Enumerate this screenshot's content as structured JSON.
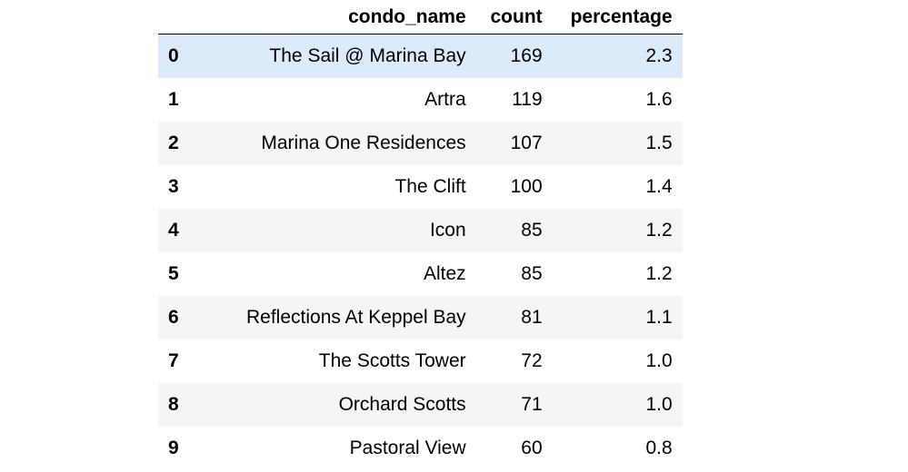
{
  "table": {
    "columns": {
      "index": "",
      "condo_name": "condo_name",
      "count": "count",
      "percentage": "percentage"
    },
    "rows": [
      {
        "index": "0",
        "condo_name": "The Sail @ Marina Bay",
        "count": "169",
        "percentage": "2.3"
      },
      {
        "index": "1",
        "condo_name": "Artra",
        "count": "119",
        "percentage": "1.6"
      },
      {
        "index": "2",
        "condo_name": "Marina One Residences",
        "count": "107",
        "percentage": "1.5"
      },
      {
        "index": "3",
        "condo_name": "The Clift",
        "count": "100",
        "percentage": "1.4"
      },
      {
        "index": "4",
        "condo_name": "Icon",
        "count": "85",
        "percentage": "1.2"
      },
      {
        "index": "5",
        "condo_name": "Altez",
        "count": "85",
        "percentage": "1.2"
      },
      {
        "index": "6",
        "condo_name": "Reflections At Keppel Bay",
        "count": "81",
        "percentage": "1.1"
      },
      {
        "index": "7",
        "condo_name": "The Scotts Tower",
        "count": "72",
        "percentage": "1.0"
      },
      {
        "index": "8",
        "condo_name": "Orchard Scotts",
        "count": "71",
        "percentage": "1.0"
      },
      {
        "index": "9",
        "condo_name": "Pastoral View",
        "count": "60",
        "percentage": "0.8"
      }
    ],
    "colors": {
      "hover_row": "#dbebfa",
      "striped_row": "#f5f5f5",
      "plain_row": "#ffffff",
      "header_rule": "#000000"
    }
  }
}
